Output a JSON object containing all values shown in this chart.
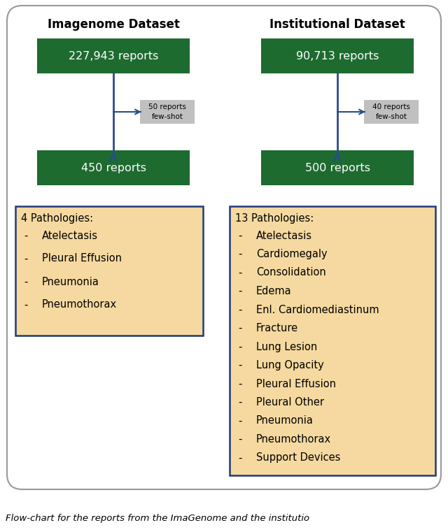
{
  "bg_color": "#ffffff",
  "outer_border_color": "#999999",
  "green_box_color": "#1e6b30",
  "green_text_color": "#ffffff",
  "pathology_box_color": "#f5d9a0",
  "pathology_border_color": "#1e3a7a",
  "arrow_color": "#2b4b8c",
  "fewshot_box_color": "#c0c0c0",
  "fewshot_text_color": "#000000",
  "left_title": "Imagenome Dataset",
  "right_title": "Institutional Dataset",
  "left_box1_text": "227,943 reports",
  "right_box1_text": "90,713 reports",
  "left_box2_text": "450 reports",
  "right_box2_text": "500 reports",
  "left_fewshot_text": "50 reports\nfew-shot",
  "right_fewshot_text": "40 reports\nfew-shot",
  "left_pathologies_title": "4 Pathologies:",
  "left_pathologies": [
    "Atelectasis",
    "Pleural Effusion",
    "Pneumonia",
    "Pneumothorax"
  ],
  "right_pathologies_title": "13 Pathologies:",
  "right_pathologies": [
    "Atelectasis",
    "Cardiomegaly",
    "Consolidation",
    "Edema",
    "Enl. Cardiomediastinum",
    "Fracture",
    "Lung Lesion",
    "Lung Opacity",
    "Pleural Effusion",
    "Pleural Other",
    "Pneumonia",
    "Pneumothorax",
    "Support Devices"
  ],
  "caption": "Flow-chart for the reports from the ImaGenome and the institutio"
}
